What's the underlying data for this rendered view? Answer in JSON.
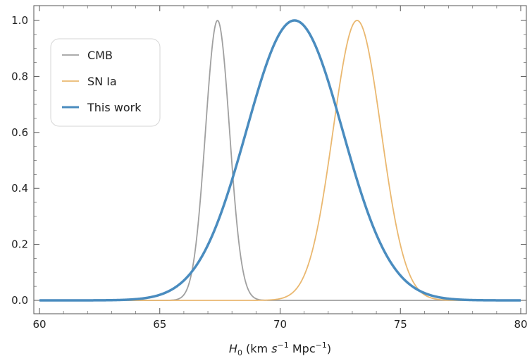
{
  "chart_data": {
    "type": "line",
    "title": "",
    "xlabel_parts": {
      "symbol": "H",
      "subscript": "0",
      "units_open": " (km ",
      "s": "s",
      "s_exp": "−1",
      "mpc": " Mpc",
      "mpc_exp": "−1",
      "close": ")"
    },
    "ylabel": "",
    "xlim": [
      60,
      80
    ],
    "ylim": [
      0.0,
      1.0
    ],
    "xticks": [
      "60",
      "65",
      "70",
      "75",
      "80"
    ],
    "xtick_values": [
      60,
      65,
      70,
      75,
      80
    ],
    "yticks": [
      "0.0",
      "0.2",
      "0.4",
      "0.6",
      "0.8",
      "1.0"
    ],
    "ytick_values": [
      0.0,
      0.2,
      0.4,
      0.6,
      0.8,
      1.0
    ],
    "grid": false,
    "legend_position": "top-left",
    "series": [
      {
        "name": "CMB",
        "color": "#a0a0a0",
        "stroke_width": 1.8,
        "peak_x": 67.4,
        "sigma": 0.5,
        "peak_y": 1.0
      },
      {
        "name": "SN Ia",
        "color": "#eab870",
        "stroke_width": 1.8,
        "peak_x": 73.2,
        "sigma": 1.0,
        "peak_y": 1.0
      },
      {
        "name": "This work",
        "color": "#4a8cbf",
        "stroke_width": 3.5,
        "peak_x": 70.6,
        "sigma": 2.0,
        "peak_y": 1.0
      }
    ]
  }
}
